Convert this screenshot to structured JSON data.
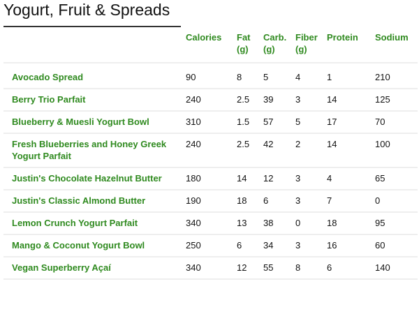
{
  "title": "Yogurt, Fruit & Spreads",
  "colors": {
    "accent": "#2f8a1f",
    "text": "#111111",
    "divider": "#eeeeee"
  },
  "columns": [
    "",
    "Calories",
    "Fat (g)",
    "Carb. (g)",
    "Fiber (g)",
    "Protein",
    "Sodium"
  ],
  "rows": [
    {
      "name": "Avocado Spread",
      "values": [
        "90",
        "8",
        "5",
        "4",
        "1",
        "210"
      ]
    },
    {
      "name": "Berry Trio Parfait",
      "values": [
        "240",
        "2.5",
        "39",
        "3",
        "14",
        "125"
      ]
    },
    {
      "name": "Blueberry & Muesli Yogurt Bowl",
      "values": [
        "310",
        "1.5",
        "57",
        "5",
        "17",
        "70"
      ]
    },
    {
      "name": "Fresh Blueberries and Honey Greek Yogurt Parfait",
      "values": [
        "240",
        "2.5",
        "42",
        "2",
        "14",
        "100"
      ]
    },
    {
      "name": "Justin's Chocolate Hazelnut Butter",
      "values": [
        "180",
        "14",
        "12",
        "3",
        "4",
        "65"
      ]
    },
    {
      "name": "Justin's Classic Almond Butter",
      "values": [
        "190",
        "18",
        "6",
        "3",
        "7",
        "0"
      ]
    },
    {
      "name": "Lemon Crunch Yogurt Parfait",
      "values": [
        "340",
        "13",
        "38",
        "0",
        "18",
        "95"
      ]
    },
    {
      "name": "Mango & Coconut Yogurt Bowl",
      "values": [
        "250",
        "6",
        "34",
        "3",
        "16",
        "60"
      ]
    },
    {
      "name": "Vegan Superberry Açaí",
      "values": [
        "340",
        "12",
        "55",
        "8",
        "6",
        "140"
      ]
    }
  ]
}
